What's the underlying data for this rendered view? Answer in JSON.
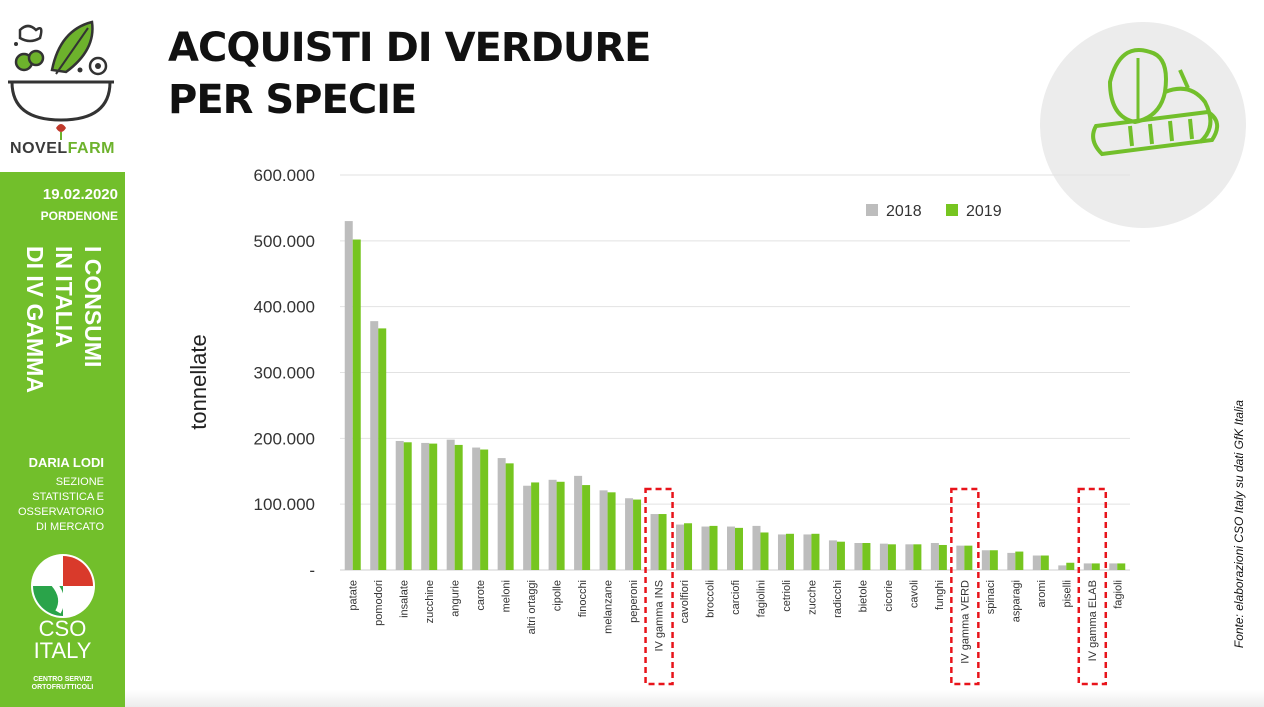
{
  "header": {
    "title_line1": "ACQUISTI DI VERDURE",
    "title_line2": "PER SPECIE"
  },
  "sidebar": {
    "brand_part1": "NOVEL",
    "brand_part2": "FARM",
    "date": "19.02.2020",
    "city": "PORDENONE",
    "vertical_lines": [
      "I CONSUMI",
      "IN ITALIA",
      "DI IV GAMMA"
    ],
    "author": "DARIA LODI",
    "department": [
      "SEZIONE",
      "STATISTICA E",
      "OSSERVATORIO",
      "DI MERCATO"
    ],
    "cso_name_1": "CSO",
    "cso_name_2": "ITALY",
    "cso_sub_1": "CENTRO SERVIZI",
    "cso_sub_2": "ORTOFRUTTICOLI",
    "accent_color": "#72bf2b",
    "icons": [
      "salad-bowl-icon",
      "cso-logo-icon",
      "vegetables-icon"
    ]
  },
  "source_note": "Fonte: elaborazioni CSO Italy su dati GfK Italia",
  "chart_data": {
    "type": "bar",
    "ylabel": "tonnellate",
    "ylim": [
      0,
      600000
    ],
    "yticks": [
      0,
      100000,
      200000,
      300000,
      400000,
      500000,
      600000
    ],
    "ytick_labels": [
      "-",
      "100.000",
      "200.000",
      "300.000",
      "400.000",
      "500.000",
      "600.000"
    ],
    "grid": true,
    "legend_position": "top-right",
    "categories": [
      "patate",
      "pomodori",
      "insalate",
      "zucchine",
      "angurie",
      "carote",
      "meloni",
      "altri ortaggi",
      "cipolle",
      "finocchi",
      "melanzane",
      "peperoni",
      "IV gamma INS",
      "cavolfiori",
      "broccoli",
      "carciofi",
      "fagiolini",
      "cetrioli",
      "zucche",
      "radicchi",
      "bietole",
      "cicorie",
      "cavoli",
      "funghi",
      "IV gamma VERD",
      "spinaci",
      "asparagi",
      "aromi",
      "piselli",
      "IV gamma ELAB",
      "fagioli"
    ],
    "highlighted": [
      "IV gamma INS",
      "IV gamma VERD",
      "IV gamma ELAB"
    ],
    "series": [
      {
        "name": "2018",
        "color": "#bdbdbd",
        "values": [
          530000,
          378000,
          196000,
          193000,
          198000,
          186000,
          170000,
          128000,
          137000,
          143000,
          121000,
          109000,
          85000,
          69000,
          66000,
          66000,
          67000,
          54000,
          54000,
          45000,
          41000,
          40000,
          39000,
          41000,
          37000,
          30000,
          26000,
          22000,
          7000,
          10000,
          10000
        ]
      },
      {
        "name": "2019",
        "color": "#76c520",
        "values": [
          502000,
          367000,
          194000,
          192000,
          190000,
          183000,
          162000,
          133000,
          134000,
          129000,
          118000,
          107000,
          85000,
          71000,
          67000,
          64000,
          57000,
          55000,
          55000,
          43000,
          41000,
          39000,
          39000,
          38000,
          37000,
          30000,
          28000,
          22000,
          11000,
          10000,
          10000
        ]
      }
    ]
  }
}
